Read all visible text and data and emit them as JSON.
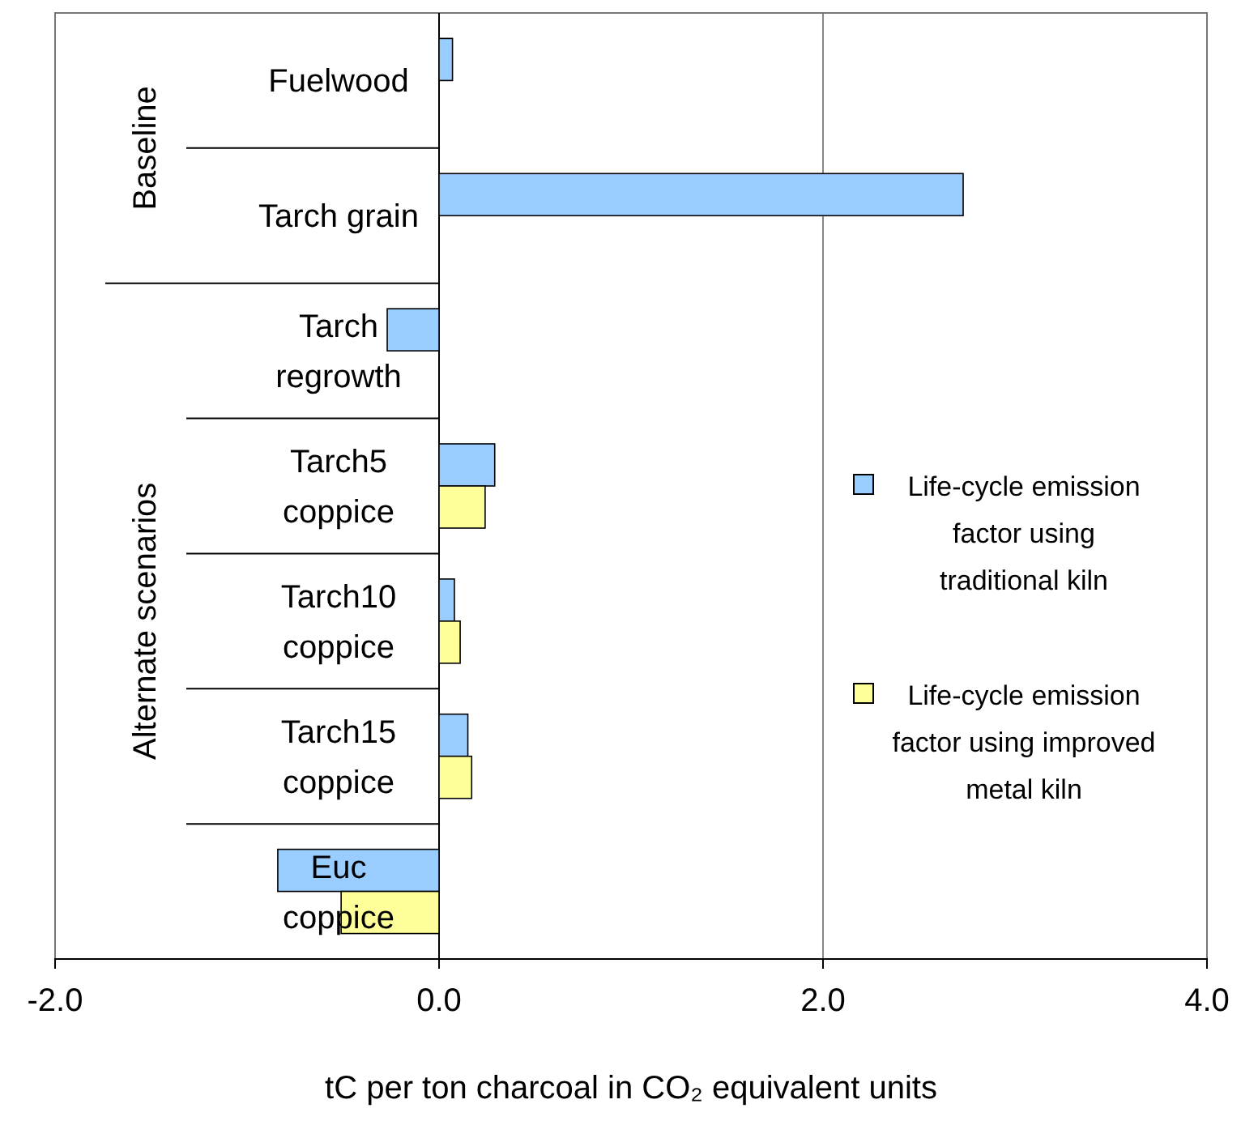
{
  "chart_data": {
    "type": "bar",
    "orientation": "horizontal",
    "categories": [
      "Fuelwood",
      "Tarch grain",
      "Tarch regrowth",
      "Tarch5 coppice",
      "Tarch10 coppice",
      "Tarch15 coppice",
      "Euc coppice"
    ],
    "series": [
      {
        "name": "Life-cycle emission factor using traditional kiln",
        "color": "#99ccff",
        "values": [
          0.07,
          2.73,
          -0.27,
          0.29,
          0.08,
          0.15,
          -0.84
        ]
      },
      {
        "name": "Life-cycle emission factor using improved metal kiln",
        "color": "#ffff99",
        "values": [
          null,
          null,
          null,
          0.24,
          0.11,
          0.17,
          -0.51
        ]
      }
    ],
    "xlim": [
      -2,
      4
    ],
    "xticks": [
      {
        "value": -2,
        "label": "-2.0"
      },
      {
        "value": 0,
        "label": "0.0"
      },
      {
        "value": 2,
        "label": "2.0"
      },
      {
        "value": 4,
        "label": "4.0"
      }
    ],
    "xlabel": "tC per ton charcoal in CO₂ equivalent units",
    "annotations": [
      "Baseline",
      "Alternate scenarios"
    ],
    "grid": "x",
    "legend": "right"
  }
}
